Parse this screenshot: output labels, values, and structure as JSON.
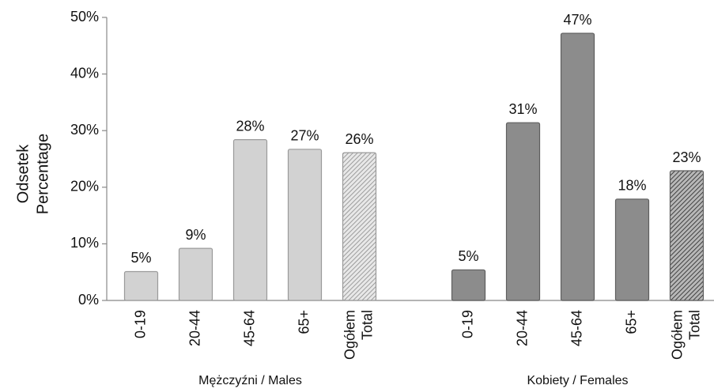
{
  "chart_data": {
    "type": "bar",
    "y_label": [
      "Odsetek",
      "Percentage"
    ],
    "ylim": [
      0,
      50
    ],
    "yticks": [
      {
        "value": 0,
        "label": "0%"
      },
      {
        "value": 10,
        "label": "10%"
      },
      {
        "value": 20,
        "label": "20%"
      },
      {
        "value": 30,
        "label": "30%"
      },
      {
        "value": 40,
        "label": "40%"
      },
      {
        "value": 50,
        "label": "50%"
      }
    ],
    "groups": [
      {
        "name": "Mężczyźni / Males",
        "color": "#d2d2d2",
        "stroke": "#9a9a9a",
        "categories": [
          "0-19",
          "20-44",
          "45-64",
          "65+",
          "Ogółem Total"
        ],
        "values": [
          5.1,
          9.2,
          28.4,
          26.7,
          26.1
        ],
        "value_labels": [
          "5%",
          "9%",
          "28%",
          "27%",
          "26%"
        ]
      },
      {
        "name": "Kobiety / Females",
        "color": "#8c8c8c",
        "stroke": "#5e5e5e",
        "categories": [
          "0-19",
          "20-44",
          "45-64",
          "65+",
          "Ogółem Total"
        ],
        "values": [
          5.4,
          31.4,
          47.2,
          17.9,
          22.9
        ],
        "value_labels": [
          "5%",
          "31%",
          "47%",
          "18%",
          "23%"
        ]
      }
    ]
  }
}
